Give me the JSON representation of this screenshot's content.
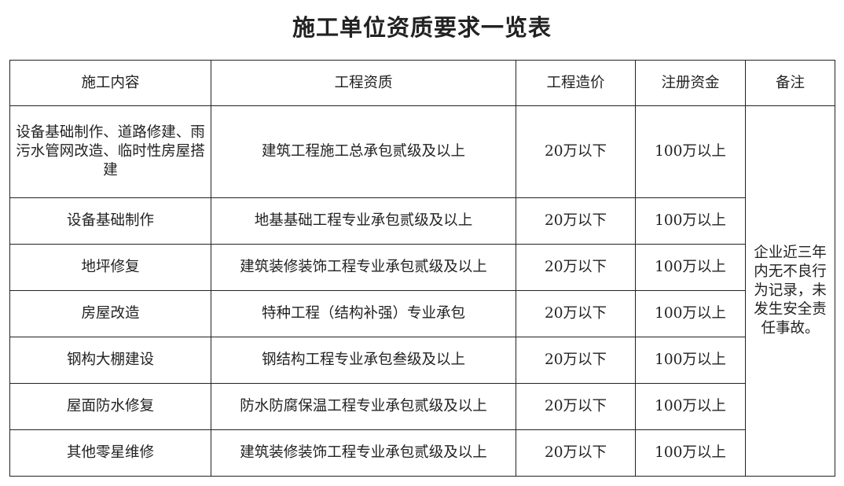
{
  "title": "施工单位资质要求一览表",
  "headers": [
    "施工内容",
    "工程资质",
    "工程造价",
    "注册资金",
    "备注"
  ],
  "rows": [
    {
      "content": "设备基础制作、道路修建、雨污水管网改造、临时性房屋搭建",
      "qualification": "建筑工程施工总承包贰级及以上",
      "cost": "20万以下",
      "capital": "100万以上"
    },
    {
      "content": "设备基础制作",
      "qualification": "地基基础工程专业承包贰级及以上",
      "cost": "20万以下",
      "capital": "100万以上"
    },
    {
      "content": "地坪修复",
      "qualification": "建筑装修装饰工程专业承包贰级及以上",
      "cost": "20万以下",
      "capital": "100万以上"
    },
    {
      "content": "房屋改造",
      "qualification": "特种工程（结构补强）专业承包",
      "cost": "20万以下",
      "capital": "100万以上"
    },
    {
      "content": "钢构大棚建设",
      "qualification": "钢结构工程专业承包叁级及以上",
      "cost": "20万以下",
      "capital": "100万以上"
    },
    {
      "content": "屋面防水修复",
      "qualification": "防水防腐保温工程专业承包贰级及以上",
      "cost": "20万以下",
      "capital": "100万以上"
    },
    {
      "content": "其他零星维修",
      "qualification": "建筑装修装饰工程专业承包贰级及以上",
      "cost": "20万以下",
      "capital": "100万以上"
    }
  ],
  "remark": "企业近三年内无不良行为记录，未发生安全责任事故。"
}
